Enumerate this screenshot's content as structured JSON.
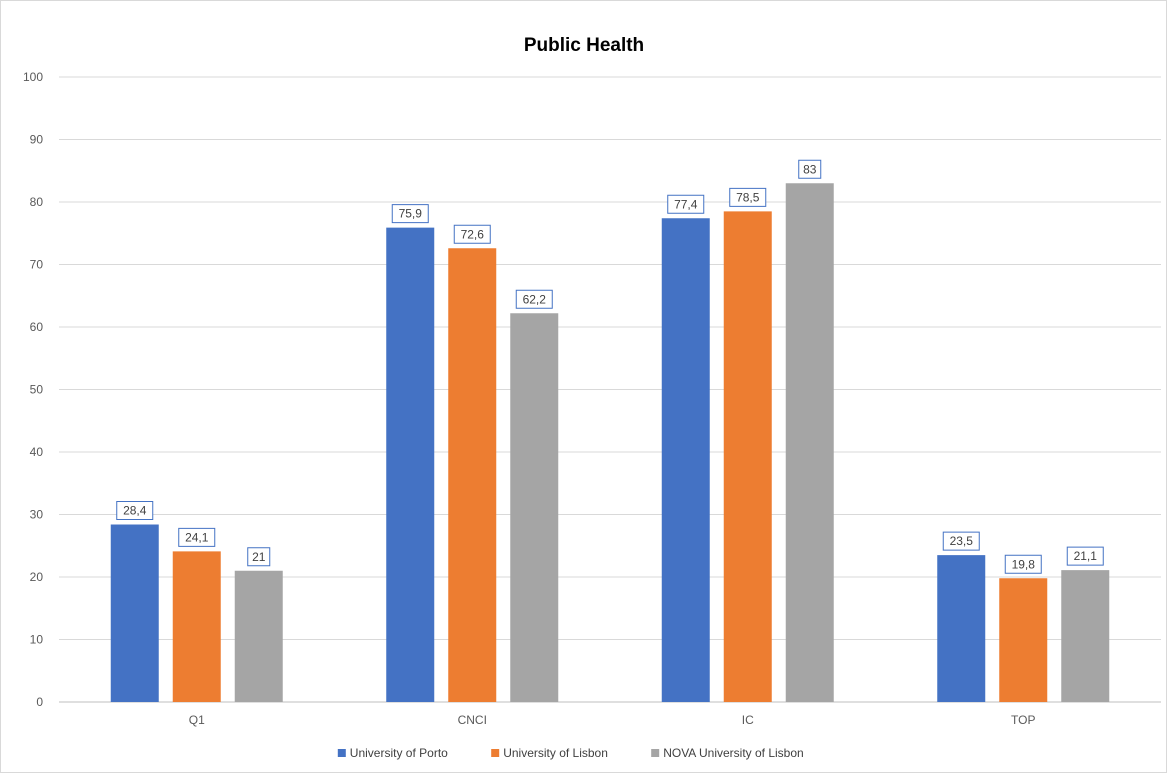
{
  "chart_data": {
    "type": "bar",
    "title": "Public Health",
    "xlabel": "",
    "ylabel": "",
    "ylim": [
      0,
      100
    ],
    "yticks": [
      0,
      10,
      20,
      30,
      40,
      50,
      60,
      70,
      80,
      90,
      100
    ],
    "categories": [
      "Q1",
      "CNCI",
      "IC",
      "TOP"
    ],
    "series": [
      {
        "name": "University of Porto",
        "color": "#4472c4",
        "values": [
          28.4,
          75.9,
          77.4,
          23.5
        ],
        "labels": [
          "28,4",
          "75,9",
          "77,4",
          "23,5"
        ]
      },
      {
        "name": "University of Lisbon",
        "color": "#ed7d31",
        "values": [
          24.1,
          72.6,
          78.5,
          19.8
        ],
        "labels": [
          "24,1",
          "72,6",
          "78,5",
          "19,8"
        ]
      },
      {
        "name": "NOVA University of Lisbon",
        "color": "#a5a5a5",
        "values": [
          21,
          62.2,
          83,
          21.1
        ],
        "labels": [
          "21",
          "62,2",
          "83",
          "21,1"
        ]
      }
    ],
    "grid": true,
    "legend": "bottom"
  }
}
